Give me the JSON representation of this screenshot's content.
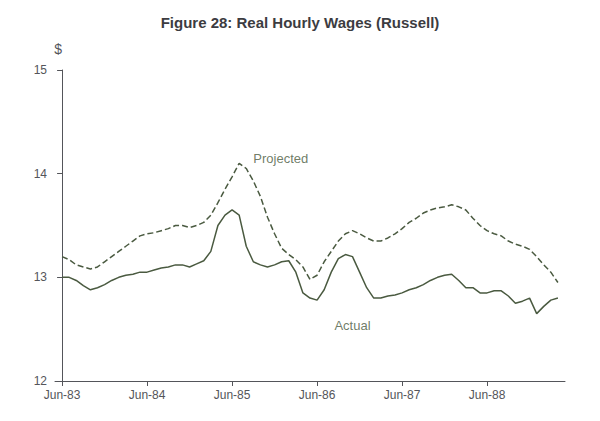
{
  "chart_data": {
    "type": "line",
    "title": "Figure 28: Real Hourly Wages (Russell)",
    "ylabel": "$",
    "x": [
      0,
      1,
      2,
      3,
      4,
      5,
      6,
      7,
      8,
      9,
      10,
      11,
      12,
      13,
      14,
      15,
      16,
      17,
      18,
      19,
      20,
      21,
      22,
      23,
      24,
      25,
      26,
      27,
      28,
      29,
      30,
      31,
      32,
      33,
      34,
      35,
      36,
      37,
      38,
      39,
      40,
      41,
      42,
      43,
      44,
      45,
      46,
      47,
      48,
      49,
      50,
      51,
      52,
      53,
      54,
      55,
      56,
      57,
      58,
      59,
      60,
      61,
      62,
      63,
      64,
      65,
      66,
      67,
      68,
      69,
      70
    ],
    "series": [
      {
        "color": "#4a5a40",
        "line_style": "solid",
        "values": [
          13.0,
          13.0,
          12.97,
          12.92,
          12.88,
          12.9,
          12.93,
          12.97,
          13.0,
          13.02,
          13.03,
          13.05,
          13.05,
          13.07,
          13.09,
          13.1,
          13.12,
          13.12,
          13.1,
          13.13,
          13.16,
          13.25,
          13.5,
          13.6,
          13.65,
          13.6,
          13.3,
          13.15,
          13.12,
          13.1,
          13.12,
          13.15,
          13.16,
          13.05,
          12.85,
          12.8,
          12.78,
          12.88,
          13.05,
          13.18,
          13.22,
          13.2,
          13.05,
          12.9,
          12.8,
          12.8,
          12.82,
          12.83,
          12.85,
          12.88,
          12.9,
          12.93,
          12.97,
          13.0,
          13.02,
          13.03,
          12.97,
          12.9,
          12.9,
          12.85,
          12.85,
          12.87,
          12.87,
          12.82,
          12.75,
          12.77,
          12.8,
          12.65,
          12.72,
          12.78,
          12.8
        ]
      },
      {
        "color": "#4a5a40",
        "line_style": "dashed",
        "values": [
          13.2,
          13.17,
          13.12,
          13.1,
          13.08,
          13.1,
          13.15,
          13.2,
          13.25,
          13.3,
          13.35,
          13.4,
          13.42,
          13.43,
          13.45,
          13.47,
          13.5,
          13.5,
          13.48,
          13.5,
          13.53,
          13.6,
          13.72,
          13.85,
          13.97,
          14.1,
          14.05,
          13.93,
          13.78,
          13.58,
          13.42,
          13.28,
          13.22,
          13.17,
          13.1,
          12.98,
          13.02,
          13.15,
          13.25,
          13.35,
          13.42,
          13.45,
          13.42,
          13.38,
          13.35,
          13.35,
          13.38,
          13.42,
          13.47,
          13.53,
          13.57,
          13.62,
          13.65,
          13.67,
          13.68,
          13.7,
          13.68,
          13.65,
          13.57,
          13.5,
          13.45,
          13.42,
          13.4,
          13.35,
          13.32,
          13.3,
          13.27,
          13.2,
          13.12,
          13.05,
          12.95
        ]
      }
    ],
    "annotations": [
      {
        "text": "Projected",
        "x": 27,
        "y": 14.08,
        "color": "#4a5a40"
      },
      {
        "text": "Actual",
        "x": 41,
        "y": 12.6,
        "color": "#4a5a40"
      }
    ],
    "xlim": [
      -1,
      71
    ],
    "xticks": [
      {
        "value": 0,
        "label": "Jun-83"
      },
      {
        "value": 12,
        "label": "Jun-84"
      },
      {
        "value": 24,
        "label": "Jun-85"
      },
      {
        "value": 36,
        "label": "Jun-86"
      },
      {
        "value": 48,
        "label": "Jun-87"
      },
      {
        "value": 60,
        "label": "Jun-88"
      }
    ],
    "ylim": [
      12,
      15
    ],
    "yticks": [
      12,
      13,
      14,
      15
    ],
    "grid": false
  }
}
